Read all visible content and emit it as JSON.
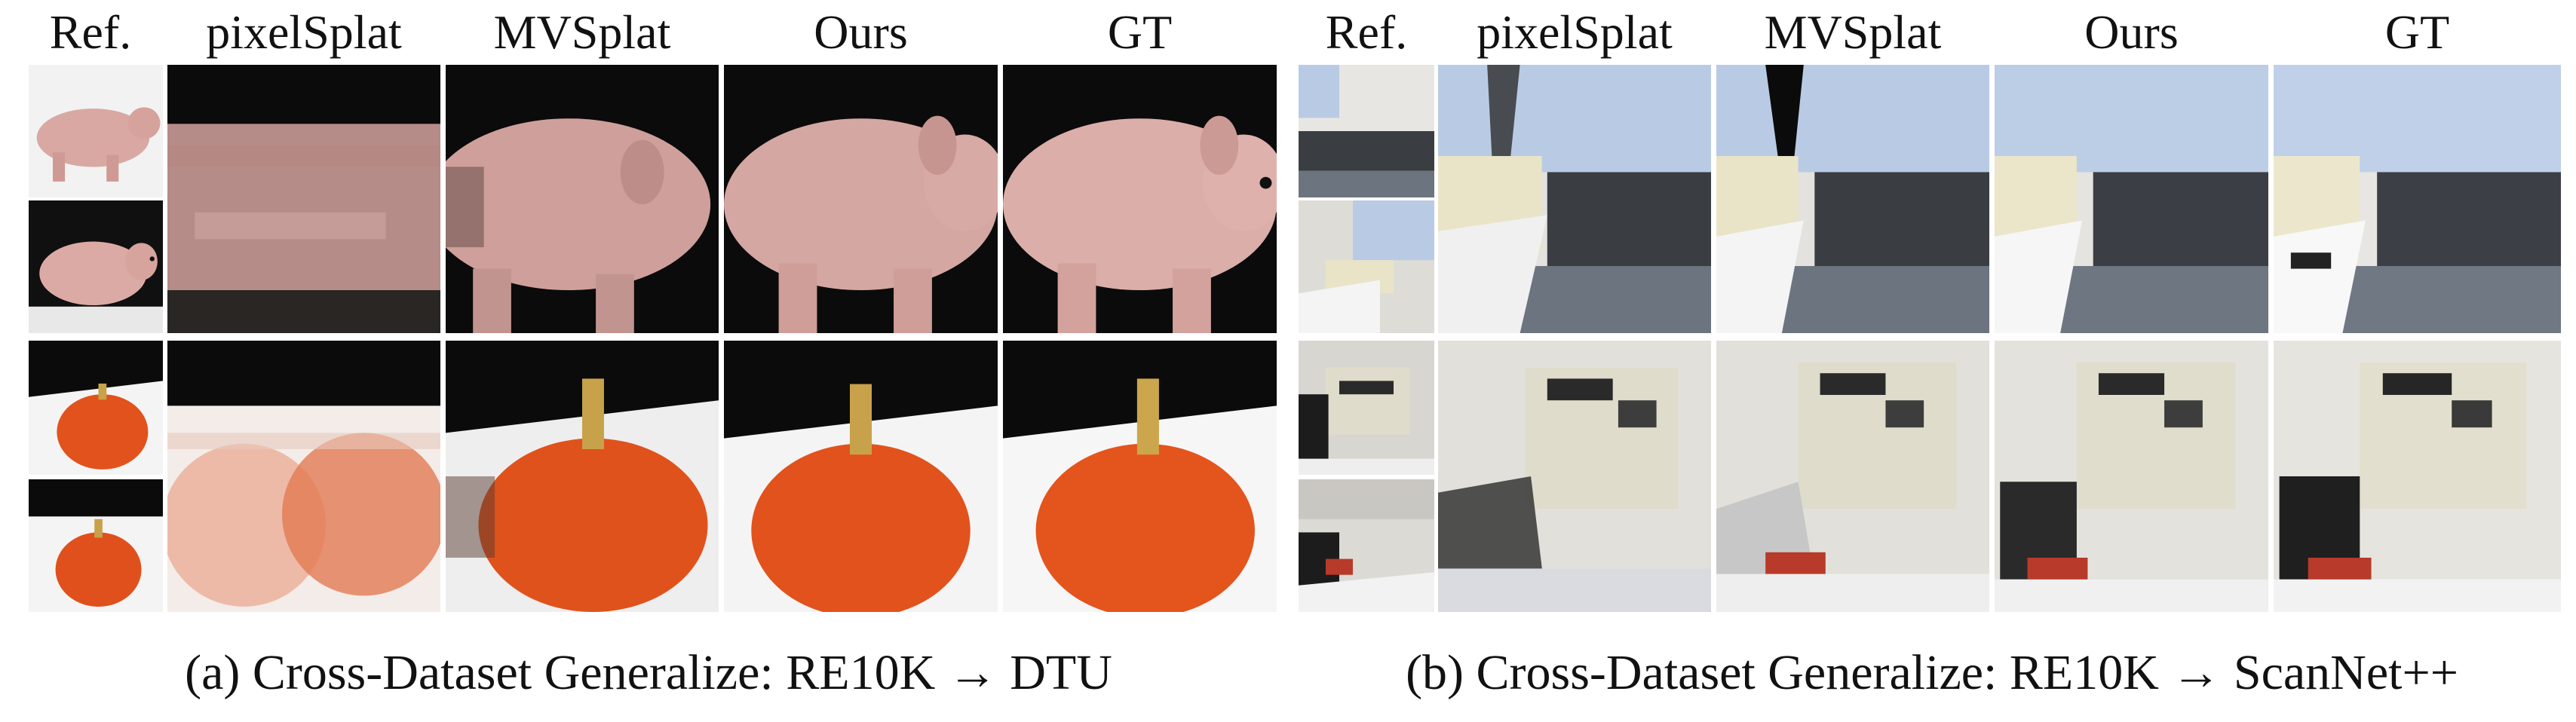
{
  "panel_a": {
    "headers": {
      "ref": "Ref.",
      "pixelsplat": "pixelSplat",
      "mvsplat": "MVSplat",
      "ours": "Ours",
      "gt": "GT"
    },
    "caption": "(a) Cross-Dataset Generalize: RE10K → DTU"
  },
  "panel_b": {
    "headers": {
      "ref": "Ref.",
      "pixelsplat": "pixelSplat",
      "mvsplat": "MVSplat",
      "ours": "Ours",
      "gt": "GT"
    },
    "caption": "(b) Cross-Dataset Generalize: RE10K → ScanNet++"
  },
  "colors": {
    "pig_pink": "#d9a8a2",
    "pumpkin_orange": "#e2521c",
    "backdrop_black": "#0b0b0b",
    "table_white": "#f4f4f4",
    "room_window_blue": "#b9cbe4",
    "sofa_gray": "#3a3d42",
    "printer_beige": "#e0dccb"
  }
}
